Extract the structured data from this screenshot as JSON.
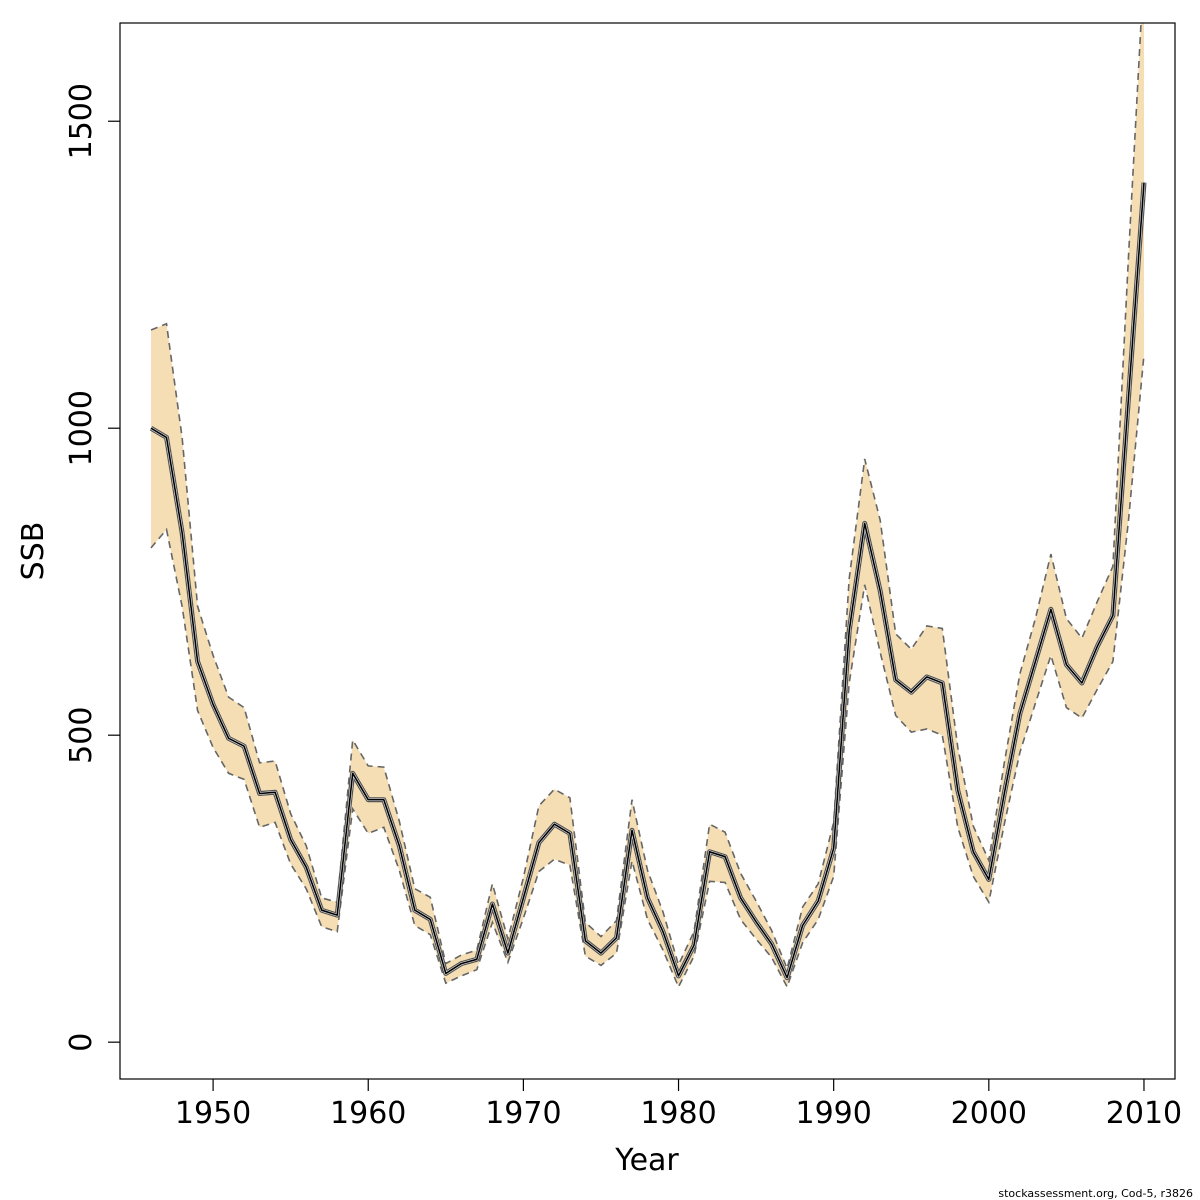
{
  "chart_data": {
    "type": "line",
    "title": "",
    "xlabel": "Year",
    "ylabel": "SSB",
    "xlim": [
      1944,
      2012
    ],
    "ylim": [
      -60,
      1660
    ],
    "x_ticks": [
      1950,
      1960,
      1970,
      1980,
      1990,
      2000,
      2010
    ],
    "y_ticks": [
      0,
      500,
      1000,
      1500
    ],
    "x_tick_labels": [
      "1950",
      "1960",
      "1970",
      "1980",
      "1990",
      "2000",
      "2010"
    ],
    "y_tick_labels": [
      "0",
      "500",
      "1000",
      "1500"
    ],
    "grid": false,
    "legend": "none",
    "credit": "stockassessment.org, Cod-5, r3826",
    "colors": {
      "band": "#f5deb3",
      "estimate": "#000000",
      "bounds": "#666666"
    },
    "x": [
      1946,
      1947,
      1948,
      1949,
      1950,
      1951,
      1952,
      1953,
      1954,
      1955,
      1956,
      1957,
      1958,
      1959,
      1960,
      1961,
      1962,
      1963,
      1964,
      1965,
      1966,
      1967,
      1968,
      1969,
      1970,
      1971,
      1972,
      1973,
      1974,
      1975,
      1976,
      1977,
      1978,
      1979,
      1980,
      1981,
      1982,
      1983,
      1984,
      1985,
      1986,
      1987,
      1988,
      1989,
      1990,
      1991,
      1992,
      1993,
      1994,
      1995,
      1996,
      1997,
      1998,
      1999,
      2000,
      2001,
      2002,
      2003,
      2004,
      2005,
      2006,
      2007,
      2008,
      2009,
      2010
    ],
    "series": [
      {
        "name": "",
        "role": "estimate",
        "values": [
          1000,
          985,
          830,
          620,
          550,
          495,
          482,
          405,
          407,
          330,
          285,
          215,
          207,
          438,
          395,
          395,
          320,
          215,
          200,
          112,
          128,
          135,
          225,
          145,
          235,
          325,
          355,
          340,
          165,
          145,
          170,
          345,
          235,
          180,
          108,
          158,
          310,
          302,
          235,
          196,
          160,
          105,
          190,
          230,
          316,
          670,
          845,
          735,
          590,
          570,
          595,
          585,
          410,
          310,
          265,
          405,
          535,
          620,
          705,
          615,
          585,
          645,
          695,
          1050,
          1400
        ]
      },
      {
        "name": "",
        "role": "upper",
        "values": [
          1160,
          1170,
          985,
          710,
          630,
          562,
          545,
          455,
          458,
          372,
          320,
          235,
          228,
          492,
          450,
          448,
          360,
          250,
          236,
          128,
          142,
          150,
          258,
          168,
          268,
          385,
          412,
          398,
          195,
          172,
          198,
          395,
          280,
          212,
          126,
          180,
          355,
          342,
          275,
          230,
          182,
          120,
          220,
          258,
          358,
          755,
          950,
          850,
          665,
          640,
          678,
          674,
          480,
          352,
          296,
          455,
          600,
          690,
          795,
          690,
          658,
          718,
          775,
          1280,
          1750
        ]
      },
      {
        "name": "",
        "role": "lower",
        "values": [
          805,
          835,
          710,
          540,
          480,
          438,
          428,
          350,
          358,
          290,
          250,
          188,
          180,
          380,
          340,
          350,
          280,
          190,
          175,
          96,
          108,
          118,
          195,
          130,
          202,
          278,
          298,
          288,
          140,
          125,
          145,
          295,
          200,
          150,
          90,
          140,
          262,
          260,
          200,
          168,
          138,
          90,
          162,
          200,
          270,
          585,
          745,
          635,
          532,
          505,
          510,
          500,
          350,
          270,
          228,
          355,
          472,
          552,
          630,
          545,
          528,
          575,
          620,
          850,
          1120
        ]
      }
    ]
  }
}
